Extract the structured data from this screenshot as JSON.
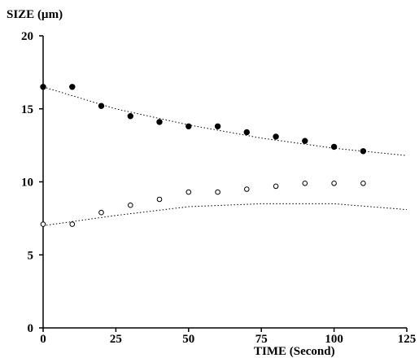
{
  "chart_data": {
    "type": "scatter",
    "title": "",
    "xlabel": "TIME (Second)",
    "ylabel": "SIZE (µm)",
    "xlim": [
      0,
      125
    ],
    "ylim": [
      0,
      20
    ],
    "xticks": [
      0,
      25,
      50,
      75,
      100,
      125
    ],
    "yticks": [
      0,
      5,
      10,
      15,
      20
    ],
    "grid": false,
    "series": [
      {
        "marker": "filled-circle",
        "x": [
          0,
          10,
          20,
          30,
          40,
          50,
          60,
          70,
          80,
          90,
          100,
          110
        ],
        "y": [
          16.5,
          16.5,
          15.2,
          14.5,
          14.1,
          13.8,
          13.8,
          13.4,
          13.1,
          12.8,
          12.4,
          12.1
        ],
        "fit": {
          "x": [
            0,
            25,
            50,
            75,
            100,
            125
          ],
          "y": [
            16.5,
            15.0,
            13.9,
            13.0,
            12.3,
            11.8
          ]
        }
      },
      {
        "marker": "open-circle",
        "x": [
          0,
          10,
          20,
          30,
          40,
          50,
          60,
          70,
          80,
          90,
          100,
          110
        ],
        "y": [
          7.1,
          7.1,
          7.9,
          8.4,
          8.8,
          9.3,
          9.3,
          9.5,
          9.7,
          9.9,
          9.9,
          9.9
        ],
        "fit": {
          "x": [
            0,
            25,
            50,
            75,
            100,
            125
          ],
          "y": [
            7.0,
            7.7,
            8.3,
            8.5,
            8.5,
            8.1
          ]
        }
      }
    ]
  }
}
